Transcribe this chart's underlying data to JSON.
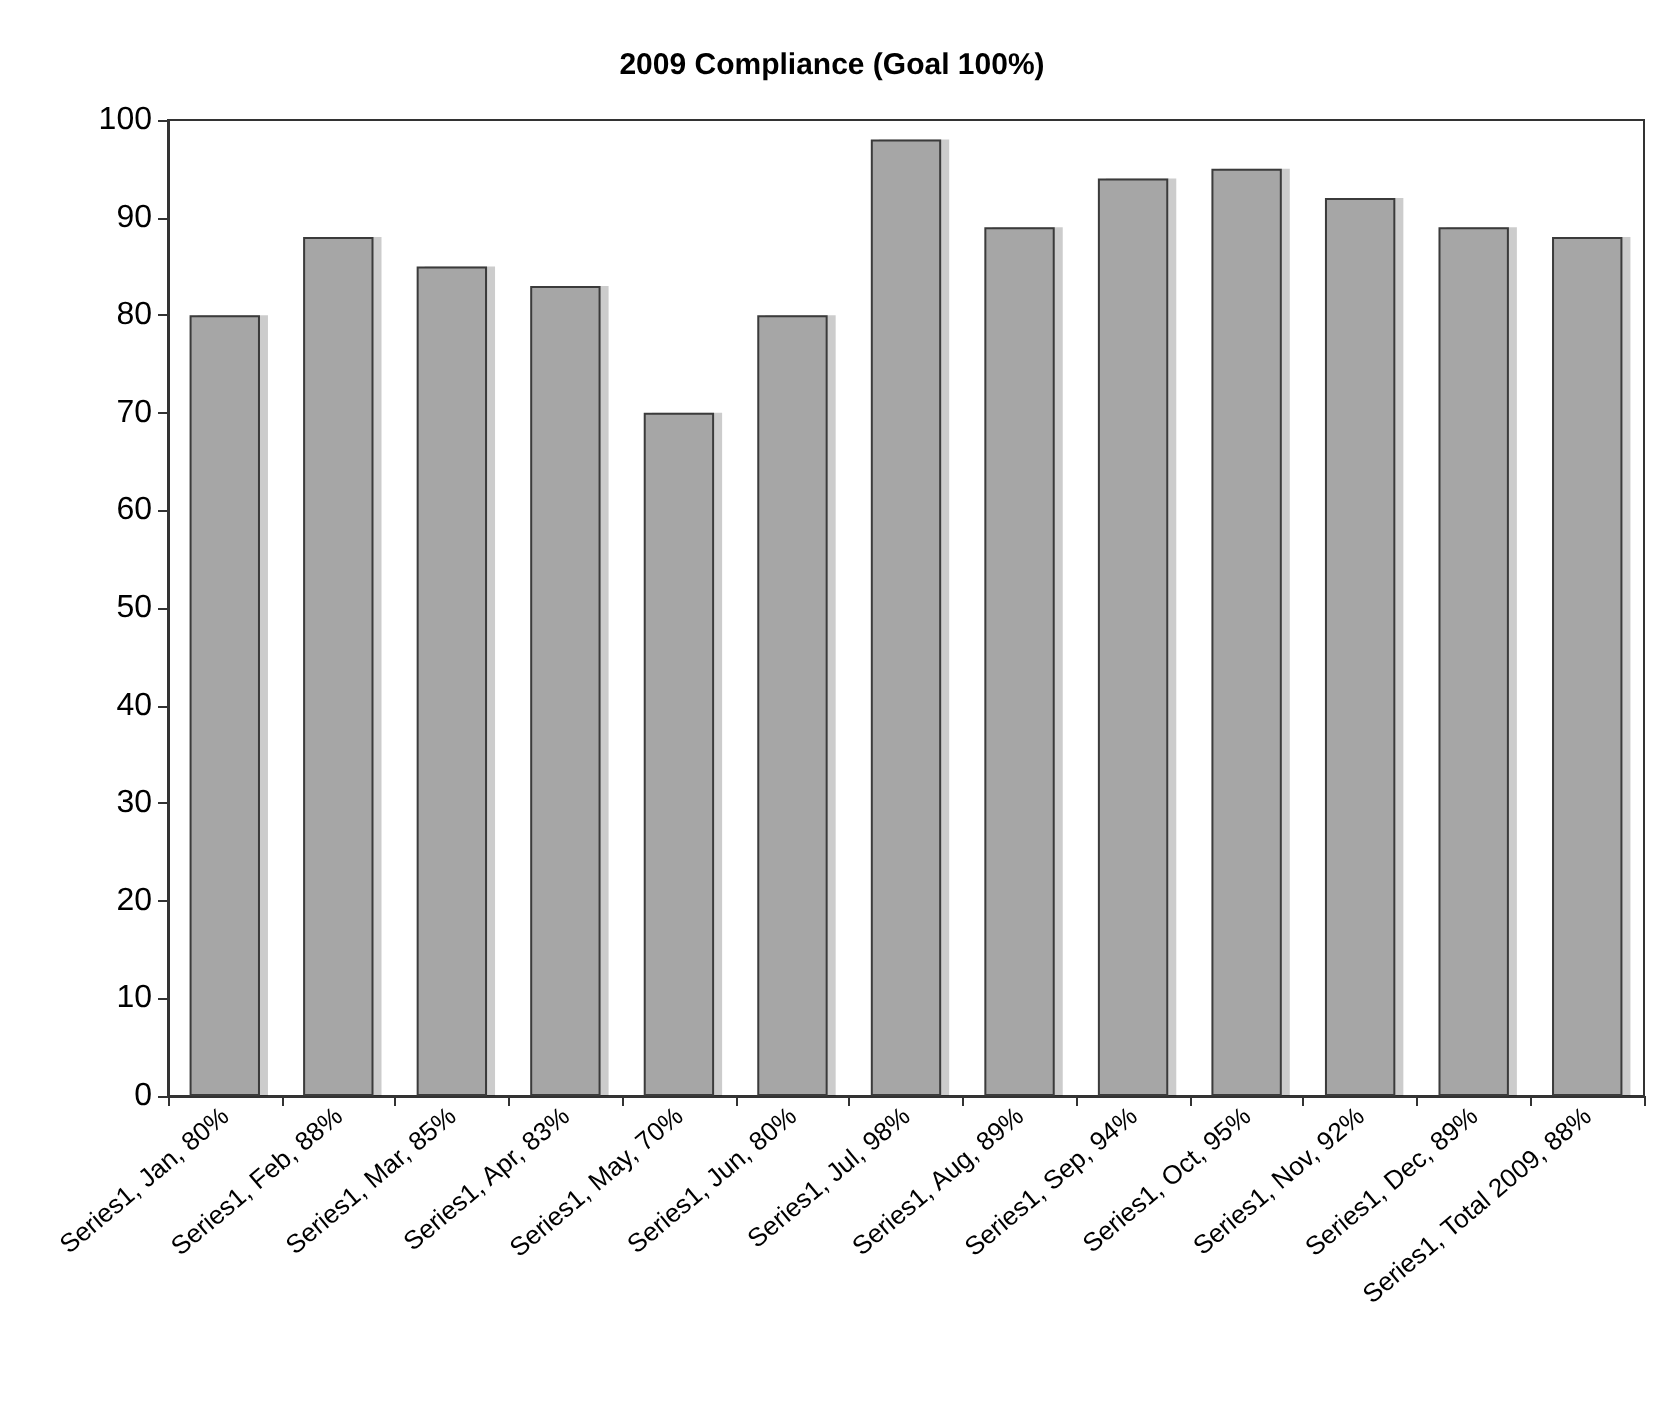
{
  "chart_data": {
    "type": "bar",
    "title": "2009 Compliance (Goal 100%)",
    "categories": [
      "Series1, Jan, 80%",
      "Series1, Feb, 88%",
      "Series1, Mar, 85%",
      "Series1, Apr, 83%",
      "Series1, May, 70%",
      "Series1, Jun, 80%",
      "Series1, Jul, 98%",
      "Series1, Aug, 89%",
      "Series1, Sep, 94%",
      "Series1, Oct, 95%",
      "Series1, Nov, 92%",
      "Series1, Dec, 89%",
      "Series1, Total 2009, 88%"
    ],
    "values": [
      80,
      88,
      85,
      83,
      70,
      80,
      98,
      89,
      94,
      95,
      92,
      89,
      88
    ],
    "color": "#a6a6a6",
    "ylim": [
      0,
      100
    ],
    "yticks": [
      0,
      10,
      20,
      30,
      40,
      50,
      60,
      70,
      80,
      90,
      100
    ],
    "grid": false
  }
}
